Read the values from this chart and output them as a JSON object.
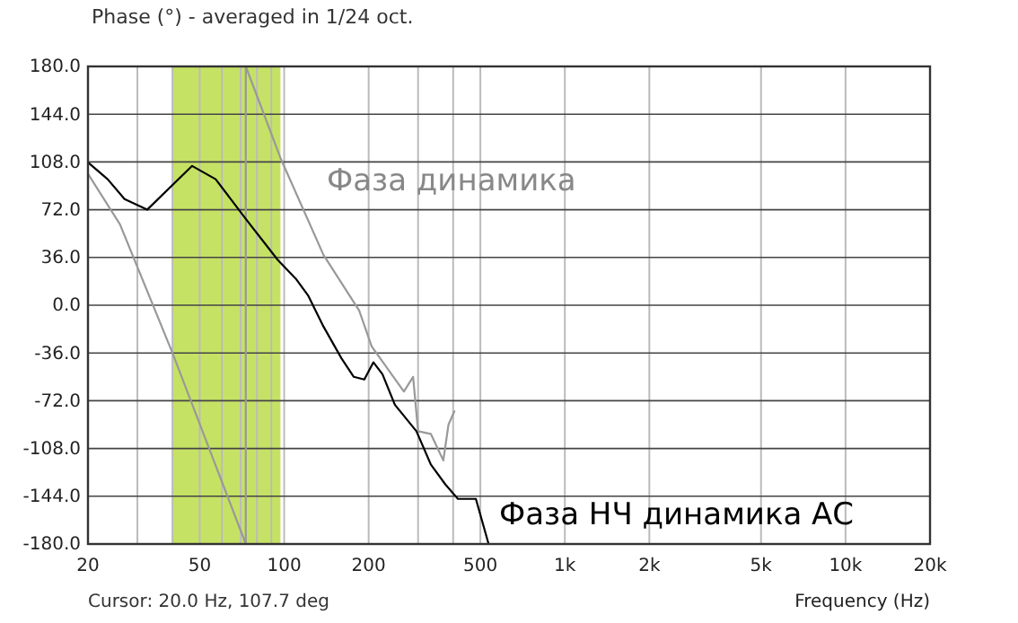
{
  "chart_data": {
    "type": "line",
    "title": "Phase (°) - averaged in 1/24 oct.",
    "xlabel": "Frequency (Hz)",
    "log": "x",
    "grid": true,
    "xlim": [
      20,
      20000
    ],
    "xticks": [
      20,
      {
        "value": 30,
        "label": null
      },
      {
        "value": 40,
        "label": null
      },
      50,
      {
        "value": 60,
        "label": null
      },
      {
        "value": 70,
        "label": null
      },
      {
        "value": 80,
        "label": null
      },
      {
        "value": 90,
        "label": null
      },
      100,
      200,
      {
        "value": 300,
        "label": null
      },
      {
        "value": 400,
        "label": null
      },
      500,
      {
        "value": 1000,
        "label": "1k"
      },
      {
        "value": 2000,
        "label": "2k"
      },
      {
        "value": 5000,
        "label": "5k"
      },
      {
        "value": 10000,
        "label": "10k"
      },
      {
        "value": 20000,
        "label": "20k"
      }
    ],
    "ylim": [
      -180,
      180
    ],
    "yticks": [
      {
        "value": -180,
        "label": "-180.0"
      },
      {
        "value": -144,
        "label": "-144.0"
      },
      {
        "value": -108,
        "label": "-108.0"
      },
      {
        "value": -72,
        "label": "-72.0"
      },
      {
        "value": -36,
        "label": "-36.0"
      },
      {
        "value": 0,
        "label": "0.0"
      },
      {
        "value": 36,
        "label": "36.0"
      },
      {
        "value": 72,
        "label": "72.0"
      },
      {
        "value": 108,
        "label": "108.0"
      },
      {
        "value": 144,
        "label": "144.0"
      },
      {
        "value": 180,
        "label": "180.0"
      }
    ],
    "bands": [
      {
        "axis": "x",
        "from": 40,
        "to": 97,
        "color": "#c6e264"
      }
    ],
    "series": [
      {
        "color": "#999999",
        "x": [
          20,
          26,
          40,
          73,
          73,
          97,
          138,
          185,
          205,
          267,
          288,
          300,
          333,
          369,
          385,
          404
        ],
        "values": [
          99,
          61,
          -36,
          -180,
          180,
          111,
          38,
          -4,
          -31,
          -65,
          -54,
          -95,
          -97,
          -117,
          -90,
          -80
        ]
      },
      {
        "color": "#000000",
        "x": [
          20,
          23.5,
          27,
          32.5,
          47,
          57,
          73,
          95,
          110,
          122,
          138,
          160,
          177,
          193,
          208,
          224,
          248,
          296,
          333,
          375,
          416,
          482,
          535
        ],
        "values": [
          107.7,
          95,
          80,
          72,
          105,
          95,
          65,
          34,
          20,
          7,
          -16,
          -40,
          -54,
          -56,
          -43,
          -52,
          -75,
          -95,
          -120,
          -135,
          -146,
          -146,
          -180
        ]
      }
    ],
    "annotations": [
      "Cursor: 20.0 Hz, 107.7 deg",
      "Фаза динамика",
      "Фаза НЧ динамика АС"
    ]
  }
}
